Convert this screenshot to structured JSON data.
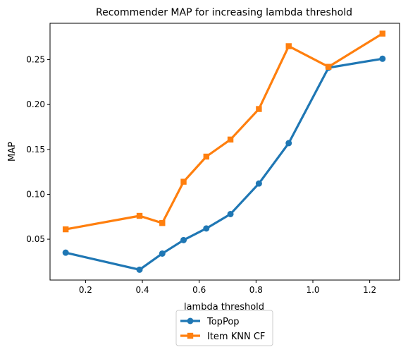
{
  "chart_data": {
    "type": "line",
    "title": "Recommender MAP for increasing lambda threshold",
    "xlabel": "lambda threshold",
    "ylabel": "MAP",
    "xlim": [
      0.075,
      1.305
    ],
    "ylim": [
      0.0045,
      0.2905
    ],
    "xticks": [
      0.2,
      0.4,
      0.6,
      0.8,
      1.0,
      1.2
    ],
    "xtick_labels": [
      "0.2",
      "0.4",
      "0.6",
      "0.8",
      "1.0",
      "1.2"
    ],
    "yticks": [
      0.05,
      0.1,
      0.15,
      0.2,
      0.25
    ],
    "ytick_labels": [
      "0.05",
      "0.10",
      "0.15",
      "0.20",
      "0.25"
    ],
    "grid": false,
    "legend_position": "below",
    "series": [
      {
        "name": "TopPop",
        "color": "#1f77b4",
        "marker": "circle",
        "x": [
          0.13,
          0.39,
          0.47,
          0.545,
          0.625,
          0.71,
          0.81,
          0.915,
          1.055,
          1.245
        ],
        "y": [
          0.035,
          0.016,
          0.034,
          0.049,
          0.062,
          0.078,
          0.112,
          0.157,
          0.241,
          0.251
        ]
      },
      {
        "name": "Item KNN CF",
        "color": "#ff7f0e",
        "marker": "square",
        "x": [
          0.13,
          0.39,
          0.47,
          0.545,
          0.625,
          0.71,
          0.81,
          0.915,
          1.055,
          1.245
        ],
        "y": [
          0.061,
          0.076,
          0.068,
          0.114,
          0.142,
          0.161,
          0.195,
          0.265,
          0.242,
          0.279
        ]
      }
    ]
  }
}
